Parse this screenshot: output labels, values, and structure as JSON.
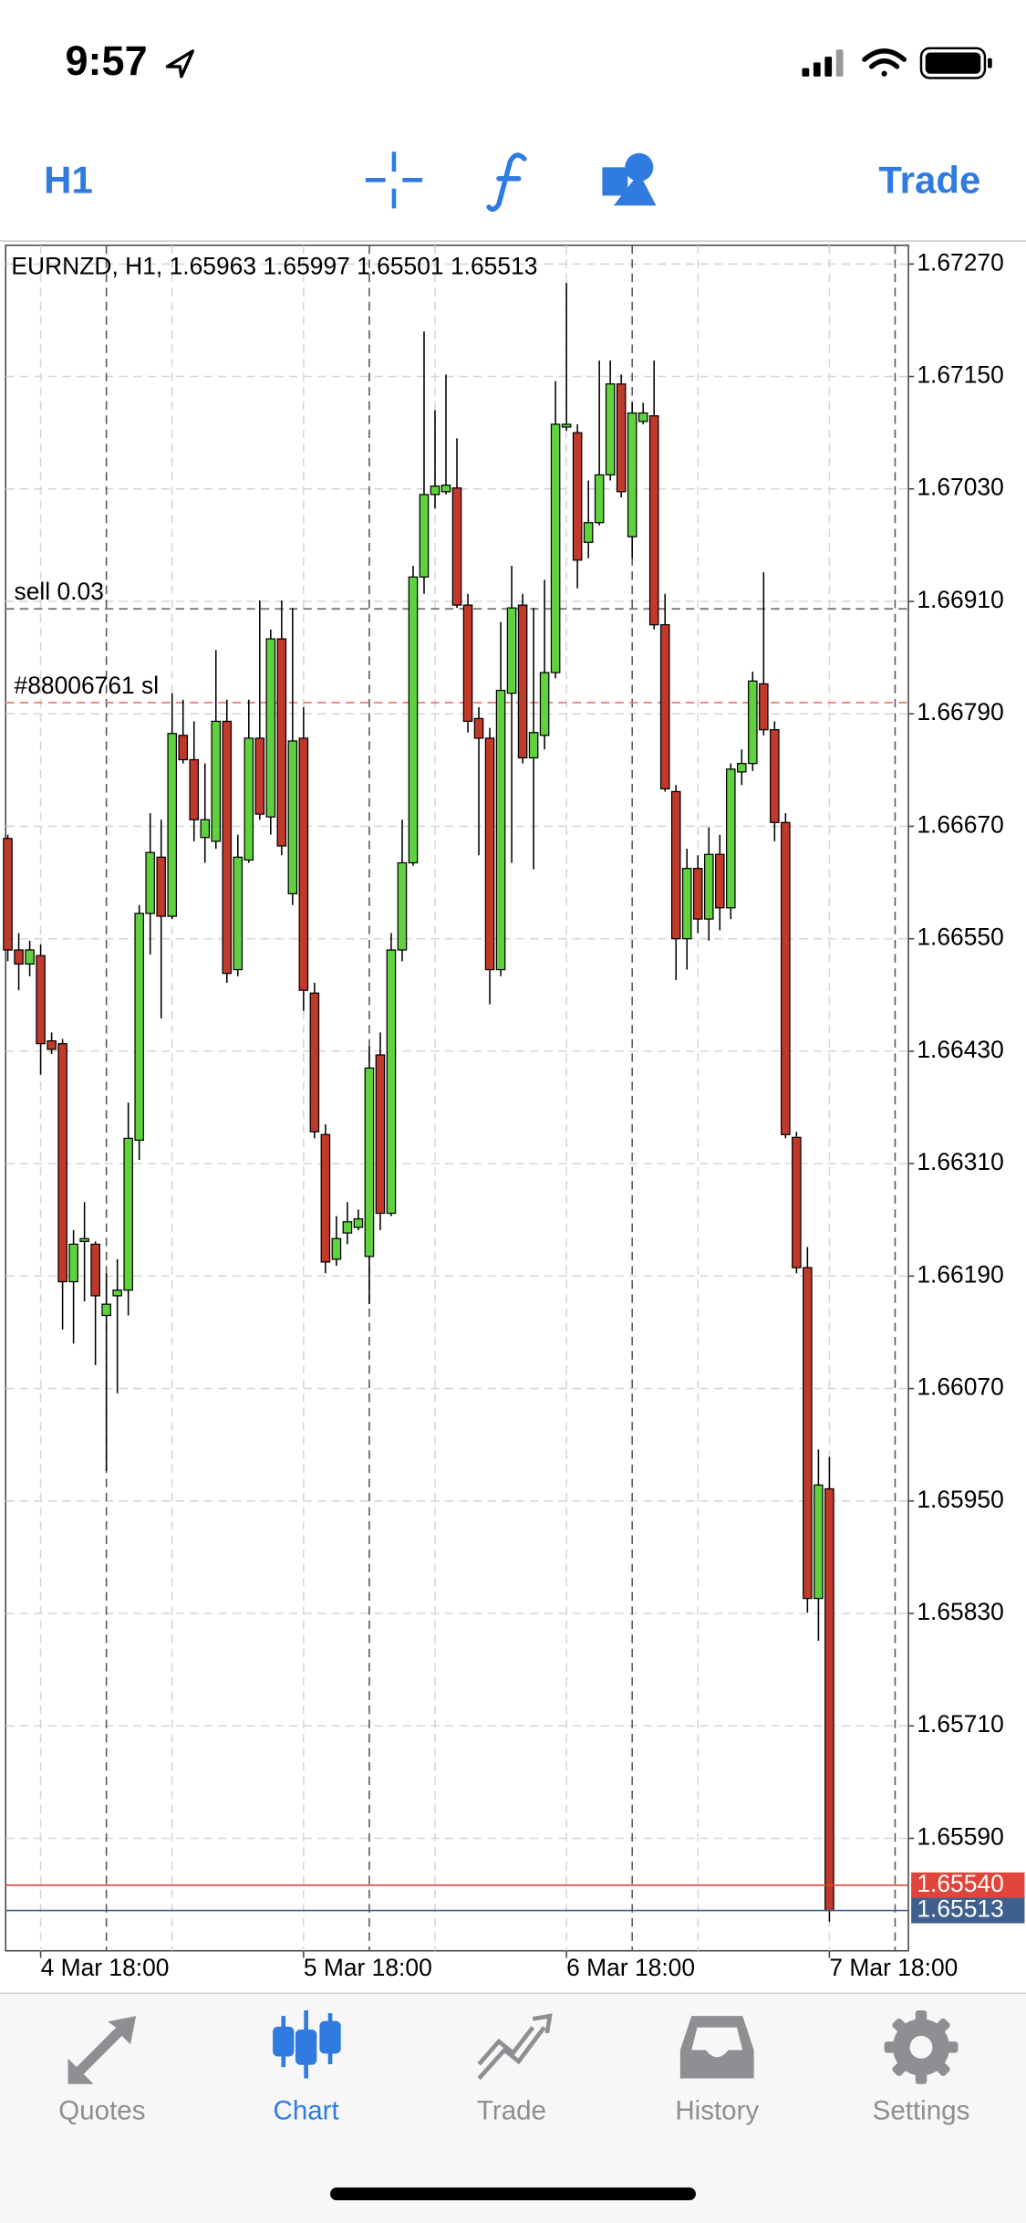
{
  "status_bar": {
    "time": "9:57"
  },
  "toolbar": {
    "timeframe": "H1",
    "trade": "Trade"
  },
  "chart_data": {
    "type": "candlestick",
    "title": "EURNZD, H1, 1.65963 1.65997 1.65501 1.65513",
    "categories": [
      null,
      null,
      null,
      "4 Mar 18:00",
      null,
      null,
      null,
      null,
      null,
      null,
      null,
      null,
      null,
      null,
      null,
      null,
      null,
      null,
      null,
      null,
      null,
      null,
      null,
      null,
      null,
      null,
      null,
      "5 Mar 18:00",
      null,
      null,
      null,
      null,
      null,
      null,
      null,
      null,
      null,
      null,
      null,
      null,
      null,
      null,
      null,
      null,
      null,
      null,
      null,
      null,
      null,
      null,
      null,
      "6 Mar 18:00",
      null,
      null,
      null,
      null,
      null,
      null,
      null,
      null,
      null,
      null,
      null,
      null,
      null,
      null,
      null,
      null,
      null,
      null,
      null,
      null,
      null,
      null,
      null,
      "7 Mar 18:00"
    ],
    "open": [
      1.66657,
      1.66538,
      1.66523,
      1.66532,
      1.66441,
      1.66438,
      1.66184,
      1.66227,
      1.66224,
      1.66148,
      1.66169,
      1.66175,
      1.66335,
      1.66577,
      1.66637,
      1.66574,
      1.66767,
      1.66741,
      1.66658,
      1.66654,
      1.66782,
      1.66517,
      1.66634,
      1.66764,
      1.6668,
      1.6687,
      1.66598,
      1.66764,
      1.66492,
      1.66341,
      1.66208,
      1.66236,
      1.66242,
      1.66211,
      1.66426,
      1.66257,
      1.66538,
      1.66631,
      1.66936,
      1.67024,
      1.67027,
      1.67031,
      1.66906,
      1.66785,
      1.66764,
      1.66517,
      1.66812,
      1.66906,
      1.66743,
      1.66767,
      1.66834,
      1.67096,
      1.6709,
      1.66973,
      1.66994,
      1.67045,
      1.67142,
      1.66979,
      1.67102,
      1.67108,
      1.66885,
      1.66707,
      1.6655,
      1.66625,
      1.66571,
      1.6664,
      1.66583,
      1.66728,
      1.66737,
      1.66822,
      1.66773,
      1.66674,
      1.66338,
      1.66199,
      1.65846,
      1.65963
    ],
    "high": [
      1.66661,
      1.66556,
      1.66548,
      1.66544,
      1.6645,
      1.66443,
      1.66239,
      1.66269,
      1.66227,
      1.66193,
      1.66208,
      1.66375,
      1.66586,
      1.66684,
      1.66677,
      1.66812,
      1.66805,
      1.66782,
      1.66737,
      1.66858,
      1.66805,
      1.66661,
      1.66805,
      1.66911,
      1.6688,
      1.66911,
      1.66903,
      1.66797,
      1.66503,
      1.66352,
      1.66254,
      1.66269,
      1.66261,
      1.66435,
      1.6645,
      1.66556,
      1.66677,
      1.66948,
      1.67198,
      1.67114,
      1.67152,
      1.67084,
      1.66918,
      1.66797,
      1.66775,
      1.66888,
      1.66948,
      1.66918,
      1.66903,
      1.66933,
      1.67145,
      1.6725,
      1.67099,
      1.67039,
      1.67167,
      1.67167,
      1.67152,
      1.67122,
      1.67122,
      1.67167,
      1.66918,
      1.66714,
      1.66646,
      1.66639,
      1.66669,
      1.66661,
      1.66737,
      1.66752,
      1.66835,
      1.66941,
      1.66782,
      1.66684,
      1.66344,
      1.66221,
      1.66005,
      1.65997
    ],
    "low": [
      1.66526,
      1.66495,
      1.6651,
      1.66405,
      1.66427,
      1.66133,
      1.66118,
      1.66163,
      1.66095,
      1.65982,
      1.66065,
      1.66148,
      1.66314,
      1.66533,
      1.66465,
      1.66571,
      1.66737,
      1.66654,
      1.66631,
      1.66646,
      1.66503,
      1.6651,
      1.66631,
      1.66677,
      1.66661,
      1.66639,
      1.66586,
      1.66473,
      1.66337,
      1.66193,
      1.66201,
      1.66224,
      1.66239,
      1.6616,
      1.66239,
      1.66254,
      1.66526,
      1.66628,
      1.66918,
      1.67009,
      1.67024,
      1.66903,
      1.6677,
      1.66639,
      1.6648,
      1.6651,
      1.66631,
      1.66737,
      1.66624,
      1.66752,
      1.66828,
      1.67092,
      1.66924,
      1.66956,
      1.66991,
      1.67039,
      1.67021,
      1.66956,
      1.67099,
      1.6688,
      1.66707,
      1.66506,
      1.66517,
      1.66556,
      1.66548,
      1.66559,
      1.66571,
      1.66714,
      1.66729,
      1.66767,
      1.66654,
      1.66337,
      1.66193,
      1.65831,
      1.65801,
      1.65501
    ],
    "close": [
      1.66538,
      1.66523,
      1.66538,
      1.66438,
      1.66432,
      1.66184,
      1.66224,
      1.6623,
      1.66169,
      1.6616,
      1.66175,
      1.66337,
      1.66577,
      1.66642,
      1.66574,
      1.66769,
      1.66741,
      1.66677,
      1.66677,
      1.66782,
      1.66513,
      1.66637,
      1.66764,
      1.66683,
      1.6687,
      1.66649,
      1.66761,
      1.66495,
      1.66344,
      1.66205,
      1.6623,
      1.66248,
      1.66251,
      1.66412,
      1.66257,
      1.66538,
      1.66631,
      1.66936,
      1.67024,
      1.67033,
      1.67034,
      1.66906,
      1.66782,
      1.66764,
      1.66517,
      1.66815,
      1.66903,
      1.66743,
      1.6677,
      1.66834,
      1.67099,
      1.67099,
      1.66954,
      1.66994,
      1.67045,
      1.67142,
      1.67027,
      1.67111,
      1.67111,
      1.66885,
      1.6671,
      1.6655,
      1.66625,
      1.66571,
      1.6664,
      1.66583,
      1.66731,
      1.66737,
      1.66825,
      1.66773,
      1.66674,
      1.66341,
      1.66199,
      1.65846,
      1.65967,
      1.65513
    ],
    "up_color": "#5fd23e",
    "down_color": "#c0392b",
    "ylim": [
      1.6547,
      1.6729
    ],
    "yticks": [
      {
        "value": 1.6727,
        "label": "1.67270"
      },
      {
        "value": 1.6715,
        "label": "1.67150"
      },
      {
        "value": 1.6703,
        "label": "1.67030"
      },
      {
        "value": 1.6691,
        "label": "1.66910"
      },
      {
        "value": 1.6679,
        "label": "1.66790"
      },
      {
        "value": 1.6667,
        "label": "1.66670"
      },
      {
        "value": 1.6655,
        "label": "1.66550"
      },
      {
        "value": 1.6643,
        "label": "1.66430"
      },
      {
        "value": 1.6631,
        "label": "1.66310"
      },
      {
        "value": 1.6619,
        "label": "1.66190"
      },
      {
        "value": 1.6607,
        "label": "1.66070"
      },
      {
        "value": 1.6595,
        "label": "1.65950"
      },
      {
        "value": 1.6583,
        "label": "1.65830"
      },
      {
        "value": 1.6571,
        "label": "1.65710"
      },
      {
        "value": 1.6559,
        "label": "1.65590"
      }
    ],
    "grid": true,
    "levels": [
      {
        "name": "sell 0.03",
        "value": 1.66902,
        "color": "#777777"
      },
      {
        "name": "#88006761 sl",
        "value": 1.66802,
        "color": "#e8887a"
      }
    ],
    "price_lines": [
      {
        "value": 1.6554,
        "label": "1.65540",
        "color": "#e0443a"
      },
      {
        "value": 1.65513,
        "label": "1.65513",
        "color": "#3f5f8f"
      }
    ]
  },
  "tab_bar": {
    "tabs": [
      "Quotes",
      "Chart",
      "Trade",
      "History",
      "Settings"
    ],
    "active_tab": 1
  }
}
